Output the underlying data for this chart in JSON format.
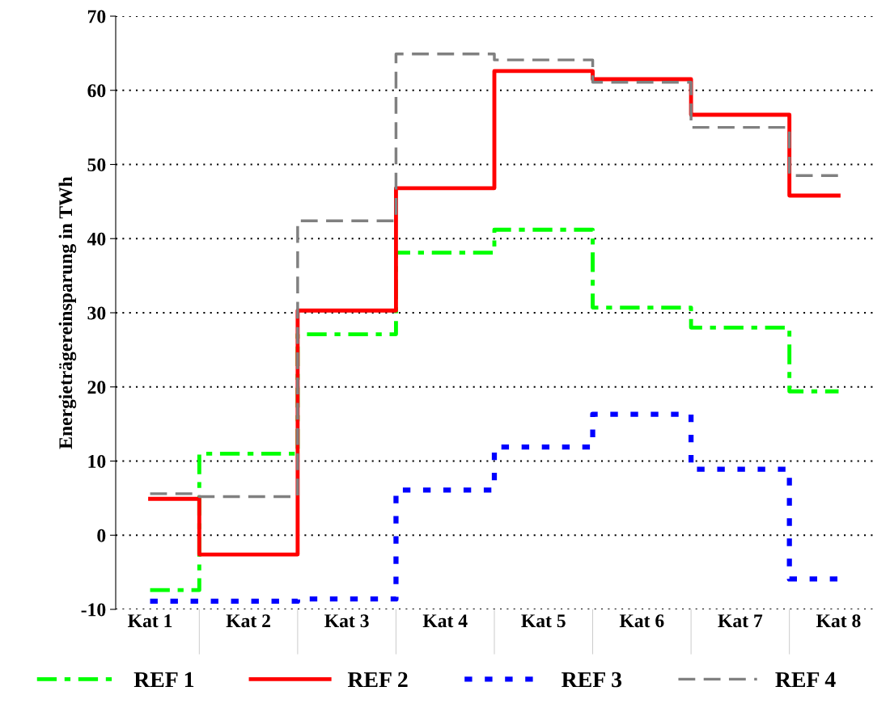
{
  "chart_data": {
    "type": "step",
    "ylabel": "Energieträgereinsparung in TWh",
    "categories": [
      "Kat 1",
      "Kat 2",
      "Kat 3",
      "Kat 4",
      "Kat 5",
      "Kat 6",
      "Kat 7",
      "Kat 8"
    ],
    "series": [
      {
        "name": "REF 1",
        "color": "#00ff00",
        "line_style": "dashed",
        "values": [
          -7.4,
          11.0,
          27.1,
          38.1,
          41.2,
          30.7,
          28.0,
          19.4
        ]
      },
      {
        "name": "REF 2",
        "color": "#ff0000",
        "line_style": "solid",
        "values": [
          4.9,
          -2.6,
          30.3,
          46.8,
          62.6,
          61.5,
          56.7,
          45.8
        ]
      },
      {
        "name": "REF 3",
        "color": "#0000ff",
        "line_style": "dotted",
        "values": [
          -8.9,
          -8.9,
          -8.6,
          6.1,
          11.9,
          16.3,
          8.9,
          -5.9
        ]
      },
      {
        "name": "REF 4",
        "color": "#808080",
        "line_style": "dashed",
        "values": [
          5.6,
          5.2,
          42.4,
          64.9,
          64.1,
          61.1,
          55.0,
          48.5
        ]
      }
    ],
    "ylim": [
      -10,
      70
    ],
    "yticks": [
      -10,
      0,
      10,
      20,
      30,
      40,
      50,
      60,
      70
    ],
    "grid": "y",
    "legend": "bottom"
  }
}
